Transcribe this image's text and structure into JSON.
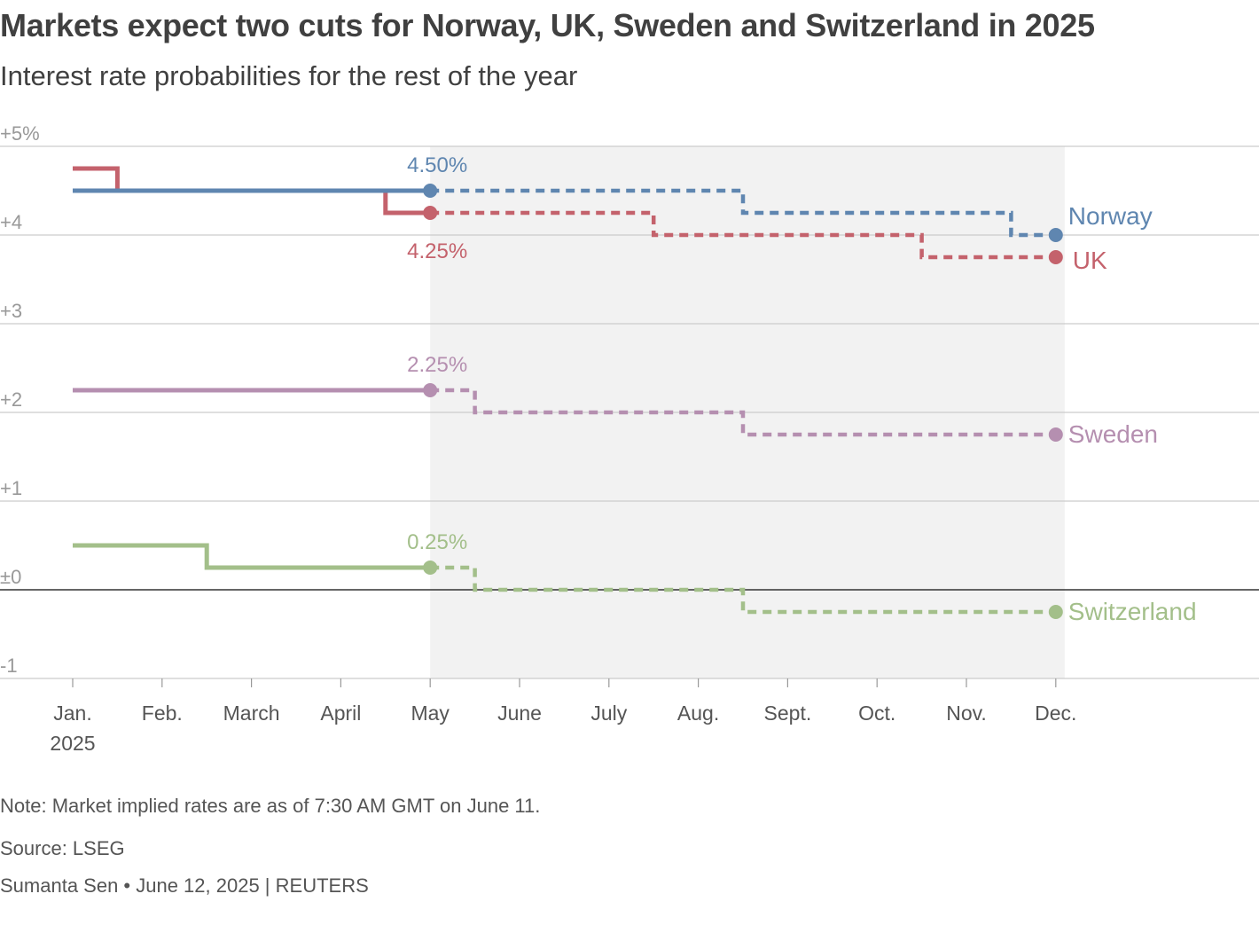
{
  "title": "Markets expect two cuts for Norway, UK, Sweden and Switzerland in 2025",
  "subtitle": "Interest rate probabilities for the rest of the year",
  "footer": {
    "note": "Note: Market implied rates are as of 7:30 AM GMT on June 11.",
    "source": "Source: LSEG",
    "byline": "Sumanta Sen • June 12, 2025 | REUTERS"
  },
  "chart_data": {
    "type": "line",
    "step": true,
    "x_domain": [
      0,
      11.6
    ],
    "ylim": [
      -1,
      5
    ],
    "y_ticks": [
      {
        "value": 5,
        "label": "+5%"
      },
      {
        "value": 4,
        "label": "+4"
      },
      {
        "value": 3,
        "label": "+3"
      },
      {
        "value": 2,
        "label": "+2"
      },
      {
        "value": 1,
        "label": "+1"
      },
      {
        "value": 0,
        "label": "±0"
      },
      {
        "value": -1,
        "label": "-1"
      }
    ],
    "x_ticks": [
      {
        "value": 0,
        "label": "Jan.",
        "sublabel": "2025"
      },
      {
        "value": 1,
        "label": "Feb."
      },
      {
        "value": 2,
        "label": "March"
      },
      {
        "value": 3,
        "label": "April"
      },
      {
        "value": 4,
        "label": "May"
      },
      {
        "value": 5,
        "label": "June"
      },
      {
        "value": 6,
        "label": "July"
      },
      {
        "value": 7,
        "label": "Aug."
      },
      {
        "value": 8,
        "label": "Sept."
      },
      {
        "value": 9,
        "label": "Oct."
      },
      {
        "value": 10,
        "label": "Nov."
      },
      {
        "value": 11,
        "label": "Dec."
      }
    ],
    "forecast_region": {
      "from": 4,
      "to": 11.1
    },
    "series": [
      {
        "name": "Sweden",
        "color": "#b58fb0",
        "actual": [
          [
            0,
            2.25
          ],
          [
            4,
            2.25
          ]
        ],
        "forecast": [
          [
            4,
            2.25
          ],
          [
            4.5,
            2.25
          ],
          [
            4.5,
            2.0
          ],
          [
            7.5,
            2.0
          ],
          [
            7.5,
            1.75
          ],
          [
            11,
            1.75
          ]
        ],
        "current_label": "2.25%",
        "current_label_pos": "above"
      },
      {
        "name": "Switzerland",
        "color": "#a3bf8a",
        "actual": [
          [
            0,
            0.5
          ],
          [
            1.5,
            0.5
          ],
          [
            1.5,
            0.25
          ],
          [
            4,
            0.25
          ]
        ],
        "forecast": [
          [
            4,
            0.25
          ],
          [
            4.5,
            0.25
          ],
          [
            4.5,
            0.0
          ],
          [
            7.5,
            0.0
          ],
          [
            7.5,
            -0.25
          ],
          [
            11,
            -0.25
          ]
        ],
        "current_label": "0.25%",
        "current_label_pos": "above"
      },
      {
        "name": "UK",
        "color": "#c4626c",
        "actual": [
          [
            0,
            4.75
          ],
          [
            0.5,
            4.75
          ],
          [
            0.5,
            4.5
          ],
          [
            3.5,
            4.5
          ],
          [
            3.5,
            4.25
          ],
          [
            4,
            4.25
          ]
        ],
        "forecast": [
          [
            4,
            4.25
          ],
          [
            6.5,
            4.25
          ],
          [
            6.5,
            4.0
          ],
          [
            9.5,
            4.0
          ],
          [
            9.5,
            3.75
          ],
          [
            11,
            3.75
          ]
        ],
        "current_label": "4.25%",
        "current_label_pos": "below"
      },
      {
        "name": "Norway",
        "color": "#5f86b0",
        "actual": [
          [
            0,
            4.5
          ],
          [
            4,
            4.5
          ]
        ],
        "forecast": [
          [
            4,
            4.5
          ],
          [
            7.5,
            4.5
          ],
          [
            7.5,
            4.25
          ],
          [
            10.5,
            4.25
          ],
          [
            10.5,
            4.0
          ],
          [
            11,
            4.0
          ]
        ],
        "current_label": "4.50%",
        "current_label_pos": "above"
      }
    ]
  }
}
